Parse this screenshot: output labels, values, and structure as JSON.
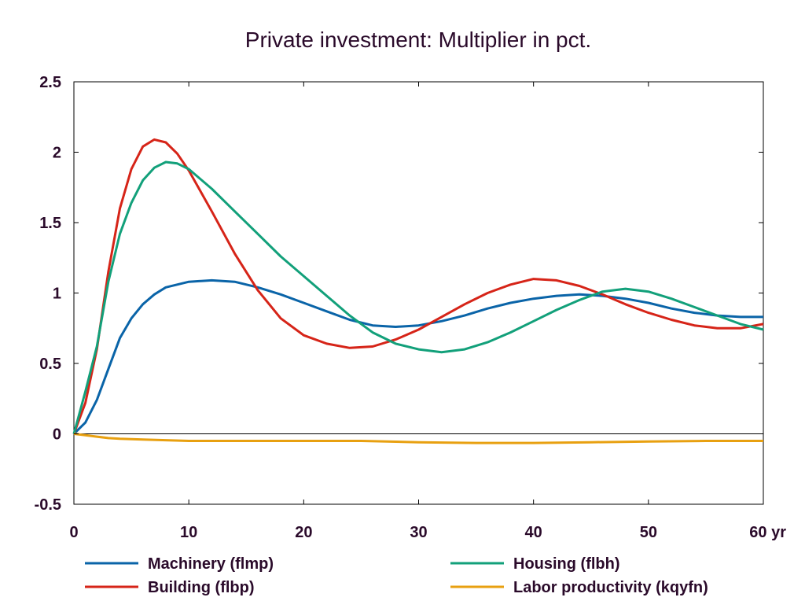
{
  "chart_data": {
    "type": "line",
    "title": "Private investment: Multiplier in pct.",
    "xlabel": "",
    "ylabel": "",
    "x_unit_label": "yr",
    "xlim": [
      0,
      60
    ],
    "ylim": [
      -0.5,
      2.5
    ],
    "x_ticks": [
      0,
      10,
      20,
      30,
      40,
      50,
      60
    ],
    "x_tick_labels": [
      "0",
      "10",
      "20",
      "30",
      "40",
      "50",
      "60 yr"
    ],
    "y_ticks": [
      -0.5,
      0,
      0.5,
      1,
      1.5,
      2,
      2.5
    ],
    "y_tick_labels": [
      "-0.5",
      "0",
      "0.5",
      "1",
      "1.5",
      "2",
      "2.5"
    ],
    "grid": false,
    "zero_line": true,
    "legend_position": "bottom",
    "series": [
      {
        "name": "Machinery (flmp)",
        "color": "#0a64a8",
        "points": [
          [
            0,
            0
          ],
          [
            1,
            0.08
          ],
          [
            2,
            0.24
          ],
          [
            3,
            0.46
          ],
          [
            4,
            0.68
          ],
          [
            5,
            0.82
          ],
          [
            6,
            0.92
          ],
          [
            7,
            0.99
          ],
          [
            8,
            1.04
          ],
          [
            10,
            1.08
          ],
          [
            12,
            1.09
          ],
          [
            14,
            1.08
          ],
          [
            16,
            1.04
          ],
          [
            18,
            0.99
          ],
          [
            20,
            0.93
          ],
          [
            22,
            0.87
          ],
          [
            24,
            0.81
          ],
          [
            26,
            0.77
          ],
          [
            28,
            0.76
          ],
          [
            30,
            0.77
          ],
          [
            32,
            0.8
          ],
          [
            34,
            0.84
          ],
          [
            36,
            0.89
          ],
          [
            38,
            0.93
          ],
          [
            40,
            0.96
          ],
          [
            42,
            0.98
          ],
          [
            44,
            0.99
          ],
          [
            46,
            0.98
          ],
          [
            48,
            0.96
          ],
          [
            50,
            0.93
          ],
          [
            52,
            0.89
          ],
          [
            54,
            0.86
          ],
          [
            56,
            0.84
          ],
          [
            58,
            0.83
          ],
          [
            60,
            0.83
          ]
        ]
      },
      {
        "name": "Building (flbp)",
        "color": "#d62418",
        "points": [
          [
            0,
            0
          ],
          [
            1,
            0.22
          ],
          [
            2,
            0.6
          ],
          [
            3,
            1.15
          ],
          [
            4,
            1.6
          ],
          [
            5,
            1.88
          ],
          [
            6,
            2.04
          ],
          [
            7,
            2.09
          ],
          [
            8,
            2.07
          ],
          [
            9,
            1.99
          ],
          [
            10,
            1.87
          ],
          [
            12,
            1.58
          ],
          [
            14,
            1.28
          ],
          [
            16,
            1.02
          ],
          [
            18,
            0.82
          ],
          [
            20,
            0.7
          ],
          [
            22,
            0.64
          ],
          [
            24,
            0.61
          ],
          [
            26,
            0.62
          ],
          [
            28,
            0.67
          ],
          [
            30,
            0.74
          ],
          [
            32,
            0.83
          ],
          [
            34,
            0.92
          ],
          [
            36,
            1.0
          ],
          [
            38,
            1.06
          ],
          [
            40,
            1.1
          ],
          [
            42,
            1.09
          ],
          [
            44,
            1.05
          ],
          [
            46,
            0.99
          ],
          [
            48,
            0.92
          ],
          [
            50,
            0.86
          ],
          [
            52,
            0.81
          ],
          [
            54,
            0.77
          ],
          [
            56,
            0.75
          ],
          [
            58,
            0.75
          ],
          [
            60,
            0.78
          ]
        ]
      },
      {
        "name": "Housing (flbh)",
        "color": "#12a07a",
        "points": [
          [
            0,
            0
          ],
          [
            1,
            0.3
          ],
          [
            2,
            0.62
          ],
          [
            3,
            1.08
          ],
          [
            4,
            1.42
          ],
          [
            5,
            1.64
          ],
          [
            6,
            1.8
          ],
          [
            7,
            1.89
          ],
          [
            8,
            1.93
          ],
          [
            9,
            1.92
          ],
          [
            10,
            1.88
          ],
          [
            12,
            1.74
          ],
          [
            14,
            1.58
          ],
          [
            16,
            1.42
          ],
          [
            18,
            1.26
          ],
          [
            20,
            1.12
          ],
          [
            22,
            0.98
          ],
          [
            24,
            0.84
          ],
          [
            26,
            0.72
          ],
          [
            28,
            0.64
          ],
          [
            30,
            0.6
          ],
          [
            32,
            0.58
          ],
          [
            34,
            0.6
          ],
          [
            36,
            0.65
          ],
          [
            38,
            0.72
          ],
          [
            40,
            0.8
          ],
          [
            42,
            0.88
          ],
          [
            44,
            0.95
          ],
          [
            46,
            1.01
          ],
          [
            48,
            1.03
          ],
          [
            50,
            1.01
          ],
          [
            52,
            0.96
          ],
          [
            54,
            0.9
          ],
          [
            56,
            0.84
          ],
          [
            58,
            0.78
          ],
          [
            60,
            0.74
          ]
        ]
      },
      {
        "name": "Labor productivity (kqyfn)",
        "color": "#e8a010",
        "points": [
          [
            0,
            0
          ],
          [
            1,
            -0.01
          ],
          [
            2,
            -0.02
          ],
          [
            3,
            -0.03
          ],
          [
            4,
            -0.035
          ],
          [
            6,
            -0.04
          ],
          [
            8,
            -0.045
          ],
          [
            10,
            -0.05
          ],
          [
            15,
            -0.05
          ],
          [
            20,
            -0.05
          ],
          [
            25,
            -0.05
          ],
          [
            30,
            -0.06
          ],
          [
            35,
            -0.065
          ],
          [
            40,
            -0.065
          ],
          [
            45,
            -0.06
          ],
          [
            50,
            -0.055
          ],
          [
            55,
            -0.05
          ],
          [
            60,
            -0.05
          ]
        ]
      }
    ]
  }
}
